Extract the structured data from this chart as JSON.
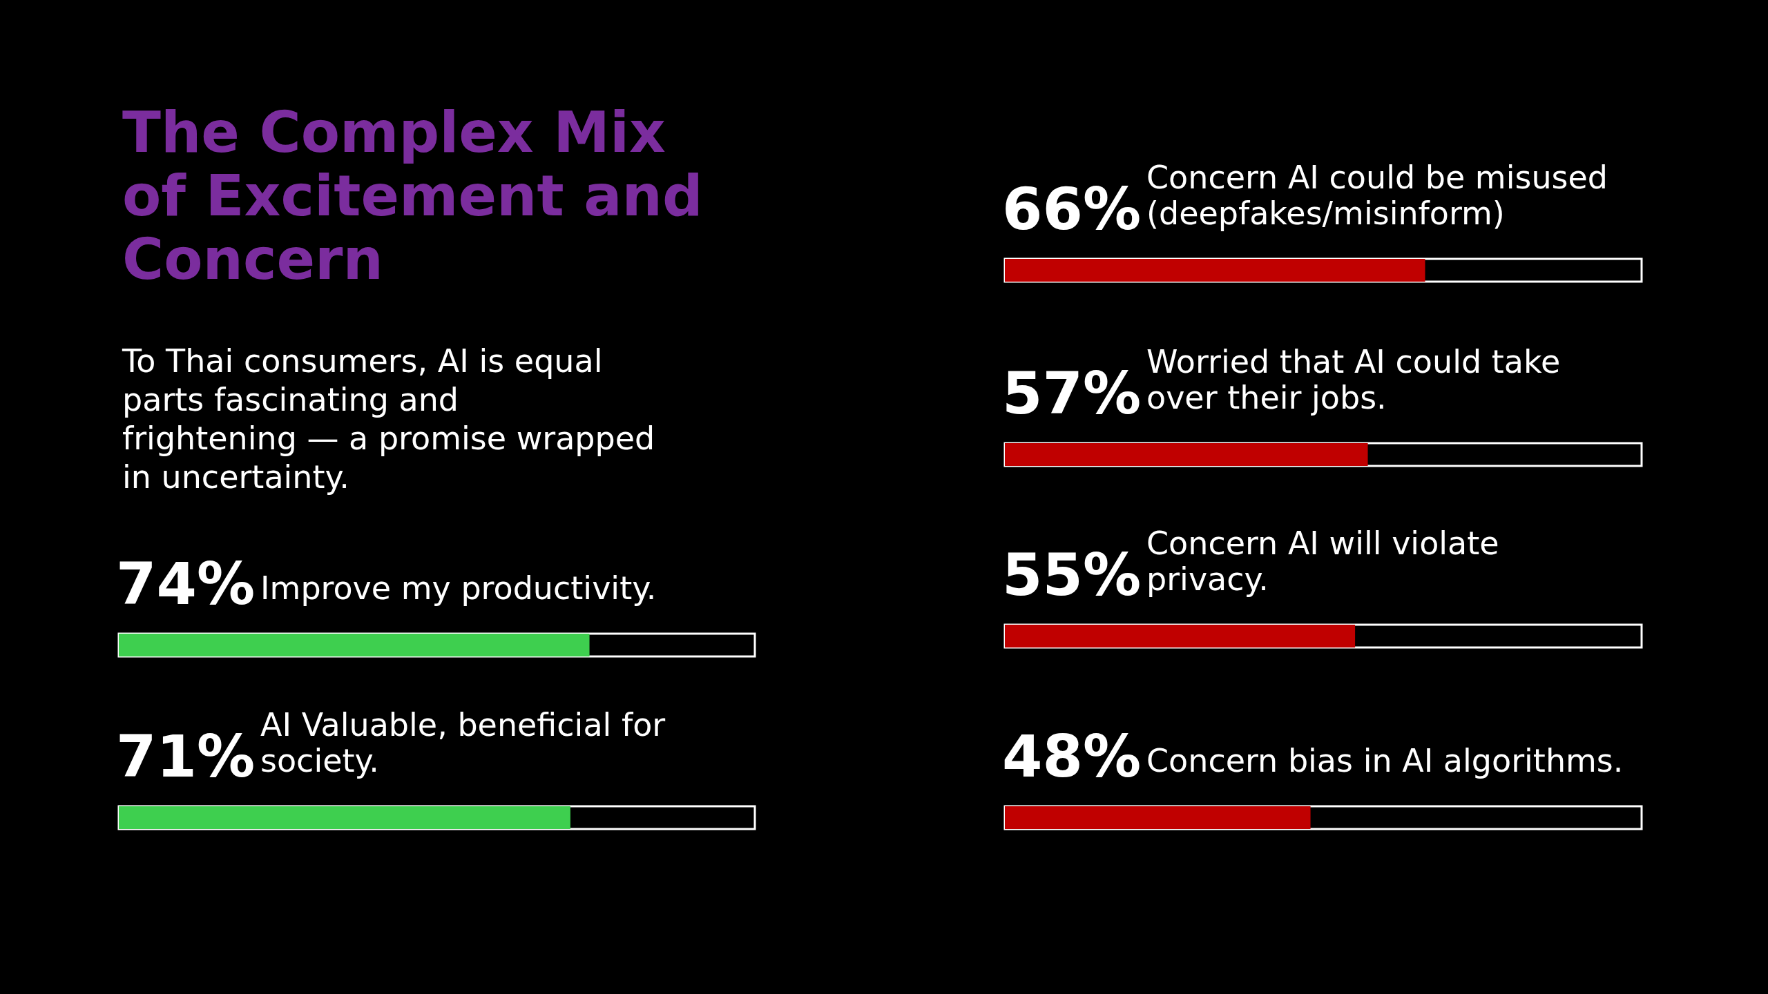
{
  "chart_data": [
    {
      "type": "bar",
      "orientation": "horizontal",
      "title": "The Complex Mix of Excitement and Concern",
      "subtitle": "To Thai consumers, AI is equal parts fascinating and frightening — a promise wrapped in uncertainty.",
      "categories": [
        "Improve my productivity.",
        "AI Valuable, beneficial for society."
      ],
      "values": [
        74,
        71
      ],
      "value_labels": [
        "74%",
        "71%"
      ],
      "color": "#3ecf4f",
      "xlim": [
        0,
        100
      ],
      "tick_labels": false
    },
    {
      "type": "bar",
      "orientation": "horizontal",
      "categories": [
        "Concern AI could be misused (deepfakes/misinform)",
        "Worried that AI could take over their jobs.",
        "Concern AI will violate privacy.",
        "Concern bias in AI algorithms."
      ],
      "values": [
        66,
        57,
        55,
        48
      ],
      "value_labels": [
        "66%",
        "57%",
        "55%",
        "48%"
      ],
      "color": "#c00000",
      "xlim": [
        0,
        100
      ],
      "tick_labels": false
    }
  ]
}
